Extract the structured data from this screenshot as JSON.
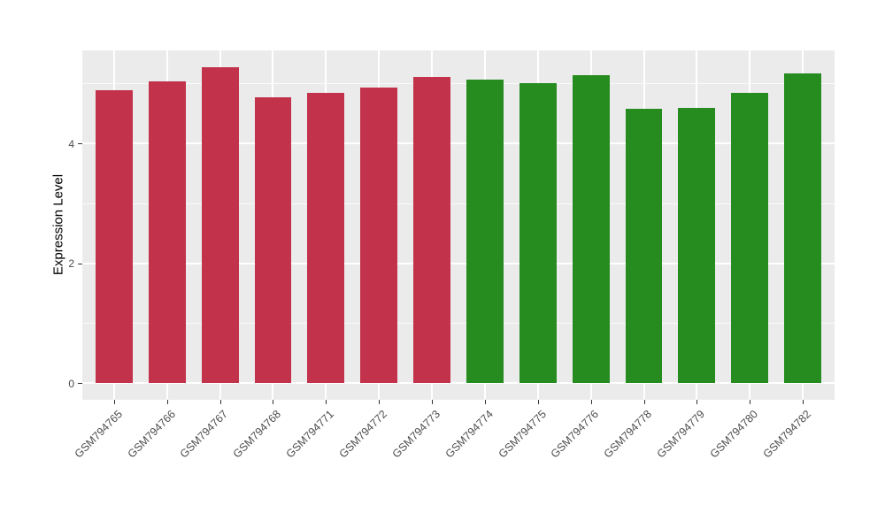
{
  "figure": {
    "background": "#FFFFFF"
  },
  "chart_data": {
    "type": "bar",
    "title": "",
    "xlabel": "",
    "ylabel": "Expression Level",
    "categories": [
      "GSM794765",
      "GSM794766",
      "GSM794767",
      "GSM794768",
      "GSM794771",
      "GSM794772",
      "GSM794773",
      "GSM794774",
      "GSM794775",
      "GSM794776",
      "GSM794778",
      "GSM794779",
      "GSM794780",
      "GSM794782"
    ],
    "values": [
      4.89,
      5.04,
      5.27,
      4.77,
      4.84,
      4.93,
      5.11,
      5.07,
      5.01,
      5.13,
      4.57,
      4.59,
      4.84,
      5.16
    ],
    "bar_colors": [
      "#C3324B",
      "#C3324B",
      "#C3324B",
      "#C3324B",
      "#C3324B",
      "#C3324B",
      "#C3324B",
      "#268C20",
      "#268C20",
      "#268C20",
      "#268C20",
      "#268C20",
      "#268C20",
      "#268C20"
    ],
    "group_colors": {
      "group1": "#C3324B",
      "group2": "#268C20"
    },
    "yticks": [
      0,
      2,
      4
    ],
    "minor_yticks": [
      1,
      3,
      5
    ],
    "ylim": [
      -0.28,
      5.55
    ],
    "bar_width_fraction": 0.7,
    "grid": true,
    "legend": "none",
    "panel_background": "#EBEBEB",
    "gridline_color": "#FFFFFF",
    "tick_label_color": "#4D4D4D",
    "tick_mark_color": "#333333",
    "axis_title_color": "#000000"
  }
}
